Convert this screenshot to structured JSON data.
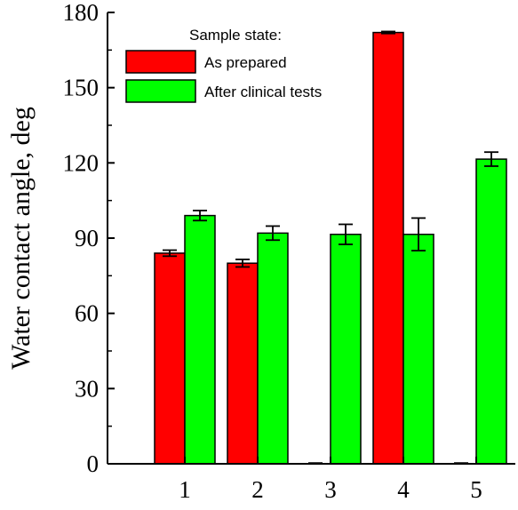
{
  "chart_data": {
    "type": "bar",
    "categories": [
      "1",
      "2",
      "3",
      "4",
      "5"
    ],
    "series": [
      {
        "name": "As prepared",
        "color": "#ff0000",
        "values": [
          84,
          80,
          0,
          172,
          0
        ],
        "errors": [
          1.2,
          1.5,
          0.3,
          0.4,
          0.3
        ]
      },
      {
        "name": "After clinical tests",
        "color": "#00ff00",
        "values": [
          99,
          92,
          91.5,
          91.5,
          121.5
        ],
        "errors": [
          2,
          2.8,
          4,
          6.5,
          2.8
        ]
      }
    ],
    "legend_title": "Sample state:",
    "ylabel": "Water contact angle, deg",
    "xlabel": "",
    "ylim": [
      0,
      180
    ],
    "yticks": [
      0,
      30,
      60,
      90,
      120,
      150,
      180
    ],
    "grid": false,
    "legend_position": "top-center"
  }
}
